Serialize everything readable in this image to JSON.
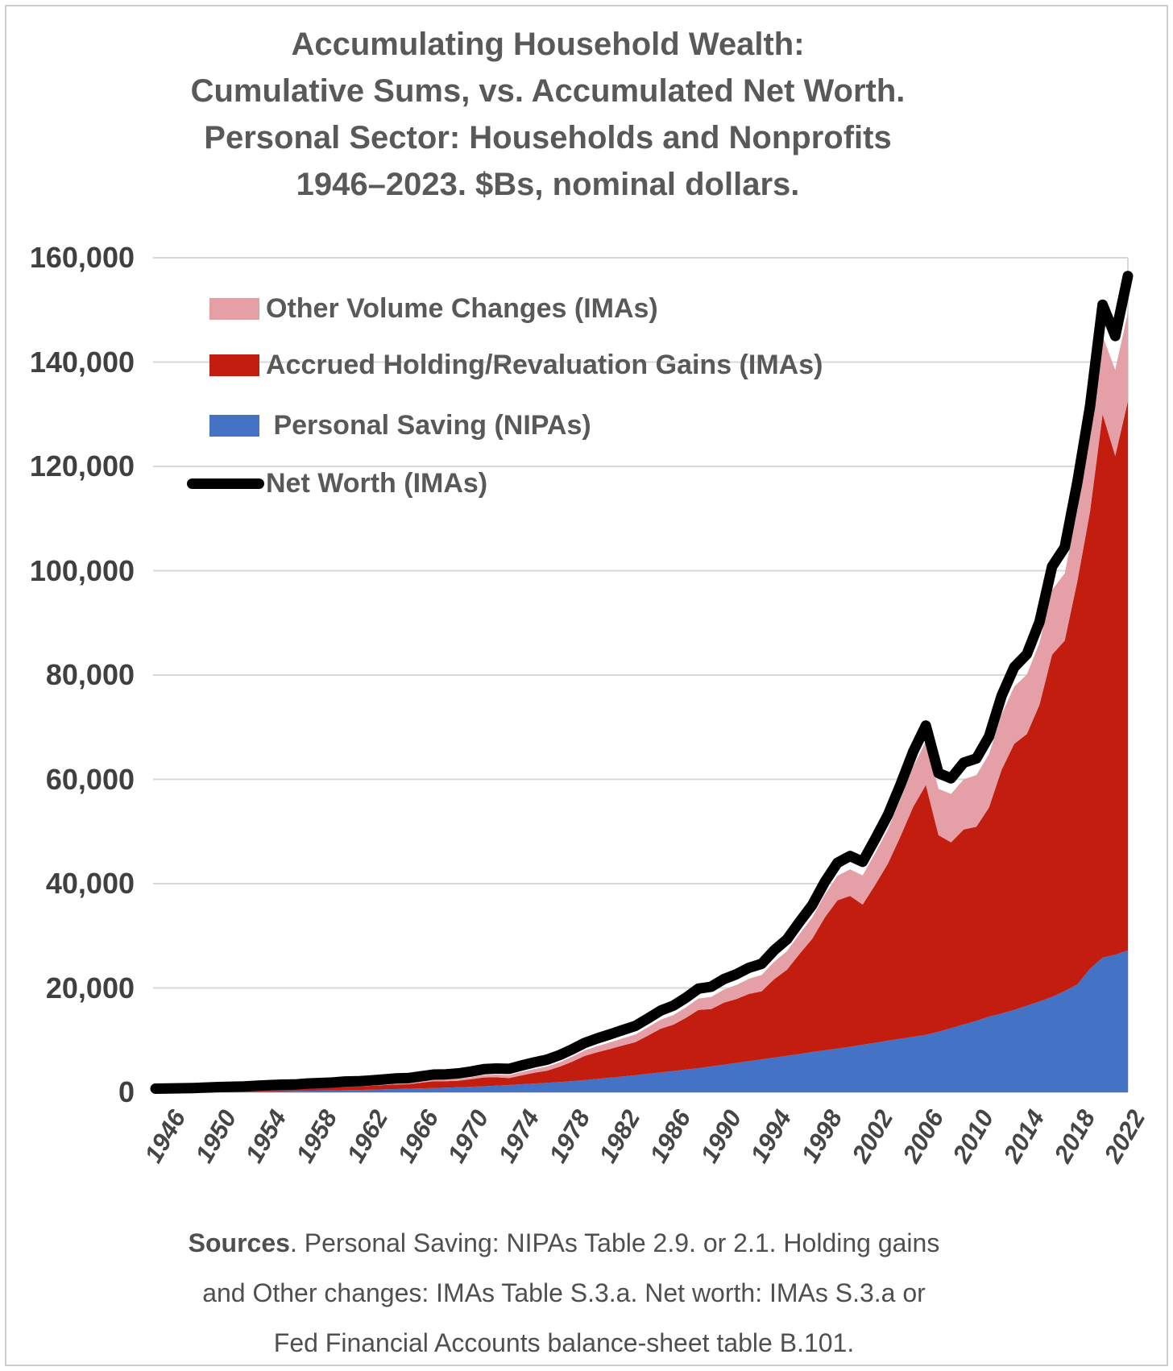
{
  "figure": {
    "title_lines": [
      "Accumulating Household Wealth:",
      "Cumulative Sums, vs. Accumulated Net Worth.",
      "Personal Sector: Households and Nonprofits",
      "1946–2023. $Bs, nominal dollars."
    ]
  },
  "legend": {
    "items": [
      {
        "label": "Other Volume Changes (IMAs)",
        "color": "#E59FA7",
        "swatch": "box"
      },
      {
        "label": "Accrued Holding/Revaluation Gains (IMAs)",
        "color": "#C21D0E",
        "swatch": "box"
      },
      {
        "label": " Personal Saving (NIPAs)",
        "color": "#4472C4",
        "swatch": "box"
      },
      {
        "label": "Net Worth (IMAs)",
        "color": "#000000",
        "swatch": "line"
      }
    ]
  },
  "sources": {
    "bold": "Sources",
    "line1_rest": ". Personal Saving: NIPAs Table 2.9. or 2.1. Holding gains",
    "line2": "and Other changes: IMAs Table S.3.a. Net worth: IMAs S.3.a or",
    "line3": "Fed Financial Accounts balance-sheet table B.101."
  },
  "colors": {
    "grid": "#D8D8D8",
    "frame": "#CCCCCC",
    "title_text": "#595959",
    "axis_text": "#404040",
    "net_worth_line": "#000000"
  },
  "chart_data": {
    "type": "area",
    "stacked": true,
    "title": "Accumulating Household Wealth: Cumulative Sums, vs. Accumulated Net Worth. Personal Sector: Households and Nonprofits 1946–2023. $Bs, nominal dollars.",
    "xlabel": "",
    "ylabel": "$Bs, nominal dollars",
    "ylim": [
      0,
      160000
    ],
    "grid": "horizontal",
    "legend_position": "top-left-inside",
    "x": [
      1946,
      1947,
      1948,
      1949,
      1950,
      1951,
      1952,
      1953,
      1954,
      1955,
      1956,
      1957,
      1958,
      1959,
      1960,
      1961,
      1962,
      1963,
      1964,
      1965,
      1966,
      1967,
      1968,
      1969,
      1970,
      1971,
      1972,
      1973,
      1974,
      1975,
      1976,
      1977,
      1978,
      1979,
      1980,
      1981,
      1982,
      1983,
      1984,
      1985,
      1986,
      1987,
      1988,
      1989,
      1990,
      1991,
      1992,
      1993,
      1994,
      1995,
      1996,
      1997,
      1998,
      1999,
      2000,
      2001,
      2002,
      2003,
      2004,
      2005,
      2006,
      2007,
      2008,
      2009,
      2010,
      2011,
      2012,
      2013,
      2014,
      2015,
      2016,
      2017,
      2018,
      2019,
      2020,
      2021,
      2022,
      2023
    ],
    "x_tick_years": [
      1946,
      1950,
      1954,
      1958,
      1962,
      1966,
      1970,
      1974,
      1978,
      1982,
      1986,
      1990,
      1994,
      1998,
      2002,
      2006,
      2010,
      2014,
      2018,
      2022
    ],
    "y_ticks": [
      {
        "value": 0,
        "label": "0"
      },
      {
        "value": 20000,
        "label": "20,000"
      },
      {
        "value": 40000,
        "label": "40,000"
      },
      {
        "value": 60000,
        "label": "60,000"
      },
      {
        "value": 80000,
        "label": "80,000"
      },
      {
        "value": 100000,
        "label": "100,000"
      },
      {
        "value": 120000,
        "label": "120,000"
      },
      {
        "value": 140000,
        "label": "140,000"
      },
      {
        "value": 160000,
        "label": "160,000"
      }
    ],
    "series": [
      {
        "name": "Personal Saving (NIPAs)",
        "render": "area",
        "color": "#4472C4",
        "values": [
          15,
          30,
          45,
          60,
          80,
          100,
          125,
          150,
          175,
          200,
          230,
          260,
          295,
          330,
          365,
          405,
          450,
          500,
          555,
          615,
          680,
          750,
          820,
          890,
          970,
          1060,
          1160,
          1280,
          1400,
          1540,
          1680,
          1820,
          1980,
          2150,
          2340,
          2560,
          2790,
          3020,
          3290,
          3550,
          3810,
          4070,
          4350,
          4640,
          4960,
          5290,
          5640,
          5970,
          6310,
          6650,
          6990,
          7340,
          7720,
          8050,
          8380,
          8730,
          9110,
          9500,
          9900,
          10270,
          10640,
          11000,
          11600,
          12300,
          13000,
          13700,
          14500,
          15100,
          15800,
          16600,
          17400,
          18300,
          19400,
          20700,
          23700,
          25800,
          26400,
          27200
        ]
      },
      {
        "name": "Accrued Holding/Revaluation Gains (IMAs)",
        "render": "area",
        "color": "#C21D0E",
        "values": [
          20,
          40,
          55,
          70,
          105,
          165,
          190,
          205,
          300,
          335,
          385,
          365,
          490,
          535,
          550,
          685,
          665,
          735,
          825,
          890,
          860,
          1085,
          1305,
          1230,
          1250,
          1435,
          1685,
          1600,
          1320,
          1710,
          2070,
          2325,
          2910,
          3720,
          4640,
          5120,
          5520,
          5960,
          6320,
          7320,
          8380,
          8880,
          9920,
          11160,
          10980,
          11880,
          12240,
          12890,
          13060,
          15050,
          16500,
          19190,
          21690,
          25460,
          28420,
          28910,
          26870,
          30320,
          33960,
          38830,
          44060,
          47900,
          37700,
          35600,
          37400,
          37200,
          40100,
          46700,
          51000,
          52100,
          56900,
          65600,
          67200,
          77300,
          87600,
          104200,
          95600,
          105300
        ]
      },
      {
        "name": "Other Volume Changes (IMAs)",
        "render": "area",
        "color": "#E59FA7",
        "values": [
          5,
          10,
          15,
          20,
          25,
          30,
          35,
          40,
          45,
          55,
          65,
          75,
          85,
          95,
          105,
          120,
          135,
          150,
          170,
          195,
          220,
          250,
          285,
          320,
          360,
          405,
          455,
          510,
          570,
          640,
          710,
          785,
          870,
          960,
          1060,
          1160,
          1260,
          1360,
          1470,
          1590,
          1720,
          1860,
          2010,
          2170,
          2340,
          2520,
          2710,
          2910,
          3120,
          3340,
          3570,
          3820,
          4090,
          4380,
          4700,
          5100,
          5600,
          6100,
          6600,
          7100,
          7700,
          8400,
          8900,
          9300,
          9600,
          9900,
          10200,
          10600,
          11000,
          11400,
          11900,
          12400,
          12900,
          13500,
          14200,
          15000,
          16500,
          17000
        ]
      },
      {
        "name": "Net Worth (IMAs)",
        "render": "line",
        "color": "#000000",
        "values": [
          690,
          735,
          775,
          815,
          910,
          1000,
          1060,
          1110,
          1250,
          1370,
          1470,
          1500,
          1680,
          1780,
          1870,
          2070,
          2120,
          2270,
          2450,
          2650,
          2720,
          3060,
          3400,
          3440,
          3630,
          3990,
          4430,
          4560,
          4500,
          5140,
          5750,
          6260,
          7130,
          8240,
          9490,
          10340,
          11120,
          11940,
          12730,
          14160,
          15660,
          16610,
          18130,
          19870,
          20230,
          21690,
          22640,
          23870,
          24640,
          27240,
          29320,
          32670,
          35880,
          40330,
          44000,
          45300,
          44200,
          48600,
          53200,
          59000,
          65300,
          70300,
          61200,
          60200,
          63200,
          64000,
          68200,
          76000,
          81500,
          84000,
          90200,
          100800,
          104500,
          117000,
          131500,
          151000,
          145000,
          156500
        ]
      }
    ]
  }
}
